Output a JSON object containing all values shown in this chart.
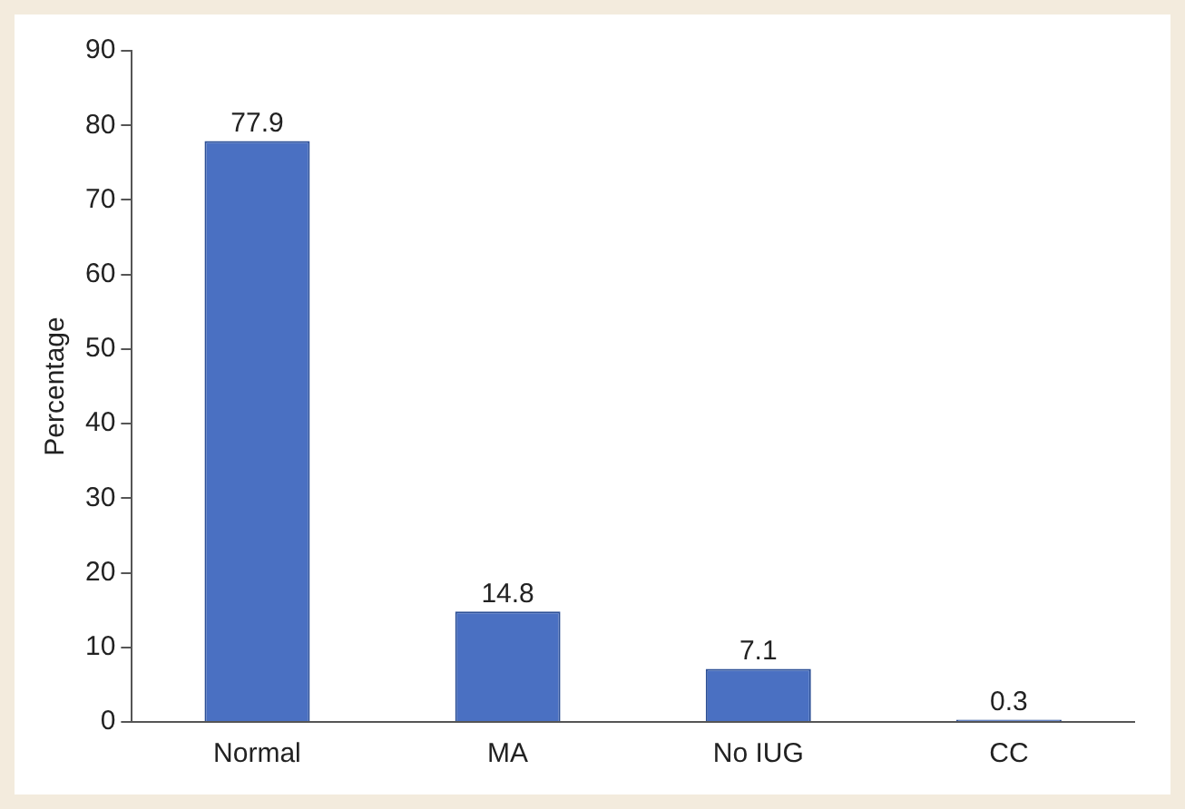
{
  "chart_data": {
    "type": "bar",
    "ylabel": "Percentage",
    "categories": [
      "Normal",
      "MA",
      "No IUG",
      "CC"
    ],
    "values": [
      77.9,
      14.8,
      7.1,
      0.3
    ],
    "color": "#4a70c2",
    "ylim": [
      0,
      90
    ],
    "yticks": [
      0,
      10,
      20,
      30,
      40,
      50,
      60,
      70,
      80,
      90
    ],
    "grid": false,
    "legend": false,
    "data_labels": true
  }
}
